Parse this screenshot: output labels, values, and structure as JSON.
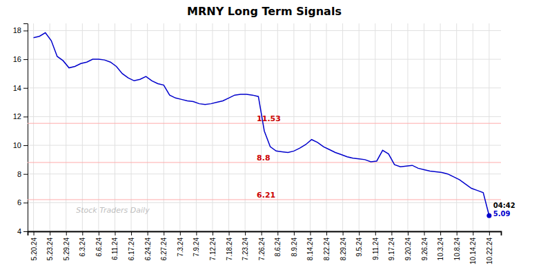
{
  "chart_data": {
    "type": "line",
    "title": "MRNY Long Term Signals",
    "color": "#0000cc",
    "grid": true,
    "x": [
      0,
      1,
      2,
      3,
      4,
      5,
      6,
      7,
      8,
      9,
      10,
      11,
      12,
      13,
      14,
      15,
      16,
      17,
      18,
      19,
      20,
      21,
      22,
      23,
      24,
      25,
      26,
      27,
      28,
      29,
      30,
      31,
      32,
      33,
      34,
      35,
      36,
      37,
      38,
      39,
      40,
      41,
      42,
      43,
      44,
      45,
      46,
      47,
      48,
      49,
      50,
      51,
      52,
      53,
      54,
      55,
      56,
      57,
      58,
      59,
      60,
      61,
      62,
      63,
      64,
      65,
      66,
      67,
      68,
      69,
      70,
      71,
      72,
      73,
      74,
      75,
      76,
      77
    ],
    "values": [
      17.5,
      17.6,
      17.85,
      17.3,
      16.2,
      15.9,
      15.4,
      15.5,
      15.7,
      15.8,
      16.0,
      16.0,
      15.95,
      15.8,
      15.5,
      15.0,
      14.7,
      14.5,
      14.6,
      14.8,
      14.5,
      14.3,
      14.2,
      13.5,
      13.3,
      13.2,
      13.1,
      13.05,
      12.9,
      12.85,
      12.9,
      13.0,
      13.1,
      13.3,
      13.5,
      13.55,
      13.55,
      13.5,
      13.4,
      11.0,
      9.9,
      9.6,
      9.55,
      9.5,
      9.6,
      9.8,
      10.05,
      10.4,
      10.2,
      9.9,
      9.7,
      9.5,
      9.35,
      9.2,
      9.1,
      9.05,
      9.0,
      8.85,
      8.9,
      9.65,
      9.4,
      8.65,
      8.5,
      8.55,
      8.6,
      8.4,
      8.3,
      8.2,
      8.15,
      8.1,
      8.0,
      7.8,
      7.6,
      7.3,
      7.0,
      6.85,
      6.7,
      5.09
    ],
    "xlim": [
      -1,
      79
    ],
    "xticks": [
      {
        "value": 0,
        "label": "5.20.24"
      },
      {
        "value": 2.75,
        "label": "5.23.24"
      },
      {
        "value": 5.5,
        "label": "5.29.24"
      },
      {
        "value": 8.25,
        "label": "6.3.24"
      },
      {
        "value": 11,
        "label": "6.6.24"
      },
      {
        "value": 13.75,
        "label": "6.11.24"
      },
      {
        "value": 16.5,
        "label": "6.17.24"
      },
      {
        "value": 19.25,
        "label": "6.24.24"
      },
      {
        "value": 22,
        "label": "6.27.24"
      },
      {
        "value": 24.75,
        "label": "7.3.24"
      },
      {
        "value": 27.5,
        "label": "7.9.24"
      },
      {
        "value": 30.25,
        "label": "7.12.24"
      },
      {
        "value": 33,
        "label": "7.18.24"
      },
      {
        "value": 35.75,
        "label": "7.23.24"
      },
      {
        "value": 38.5,
        "label": "7.26.24"
      },
      {
        "value": 41.25,
        "label": "8.6.24"
      },
      {
        "value": 44,
        "label": "8.9.24"
      },
      {
        "value": 46.75,
        "label": "8.14.24"
      },
      {
        "value": 49.5,
        "label": "8.22.24"
      },
      {
        "value": 52.25,
        "label": "8.29.24"
      },
      {
        "value": 55,
        "label": "9.5.24"
      },
      {
        "value": 57.75,
        "label": "9.11.24"
      },
      {
        "value": 60.5,
        "label": "9.17.24"
      },
      {
        "value": 63.25,
        "label": "9.20.24"
      },
      {
        "value": 66,
        "label": "9.26.24"
      },
      {
        "value": 68.75,
        "label": "10.3.24"
      },
      {
        "value": 71.5,
        "label": "10.8.24"
      },
      {
        "value": 74.25,
        "label": "10.14.24"
      },
      {
        "value": 77,
        "label": "10.22.24"
      }
    ],
    "ylim": [
      4,
      18.5
    ],
    "yticks": [
      4,
      6,
      8,
      10,
      12,
      14,
      16,
      18
    ],
    "reference_lines": [
      {
        "value": 11.53,
        "label": "11.53"
      },
      {
        "value": 8.8,
        "label": "8.8"
      },
      {
        "value": 6.21,
        "label": "6.21"
      }
    ],
    "annotations": [
      {
        "text": "04:42"
      },
      {
        "text": "5.09",
        "color": "#0000cc"
      }
    ],
    "watermark": "Stock Traders Daily"
  }
}
